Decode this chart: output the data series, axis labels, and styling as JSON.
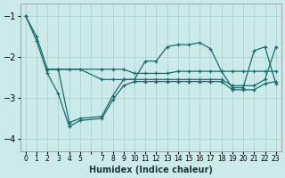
{
  "title": "",
  "xlabel": "Humidex (Indice chaleur)",
  "background_color": "#cceaea",
  "line_color": "#1a6b6b",
  "grid_color": "#aad4d4",
  "xlim": [
    -0.5,
    23.5
  ],
  "ylim": [
    -4.3,
    -0.7
  ],
  "yticks": [
    -4,
    -3,
    -2,
    -1
  ],
  "xtick_labels": [
    "0",
    "1",
    "2",
    "3",
    "4",
    "5",
    "",
    "7",
    "8",
    "9",
    "10",
    "11",
    "12",
    "13",
    "14",
    "15",
    "16",
    "17",
    "18",
    "19",
    "20",
    "21",
    "22",
    "23"
  ],
  "xtick_positions": [
    0,
    1,
    2,
    3,
    4,
    5,
    6,
    7,
    8,
    9,
    10,
    11,
    12,
    13,
    14,
    15,
    16,
    17,
    18,
    19,
    20,
    21,
    22,
    23
  ],
  "series": [
    {
      "x": [
        0,
        1,
        2,
        3,
        7,
        8,
        9,
        10,
        11,
        12,
        13,
        14,
        15,
        16,
        17,
        18,
        19,
        20,
        21,
        22,
        23
      ],
      "y": [
        -1.0,
        -1.5,
        -2.3,
        -2.3,
        -2.3,
        -2.3,
        -2.3,
        -2.4,
        -2.4,
        -2.4,
        -2.4,
        -2.35,
        -2.35,
        -2.35,
        -2.35,
        -2.35,
        -2.35,
        -2.35,
        -2.35,
        -2.35,
        -2.35
      ]
    },
    {
      "x": [
        0,
        1,
        2,
        3,
        4,
        5,
        7,
        8,
        9,
        10,
        11,
        12,
        13,
        14,
        15,
        16,
        17,
        18,
        19,
        20,
        21,
        22,
        23
      ],
      "y": [
        -1.0,
        -1.6,
        -2.4,
        -2.9,
        -3.7,
        -3.55,
        -3.5,
        -3.05,
        -2.7,
        -2.6,
        -2.6,
        -2.6,
        -2.6,
        -2.6,
        -2.6,
        -2.6,
        -2.6,
        -2.6,
        -2.8,
        -2.8,
        -2.8,
        -2.65,
        -2.6
      ]
    },
    {
      "x": [
        2,
        3,
        4,
        5,
        7,
        8,
        9,
        10,
        11,
        12,
        13,
        14,
        15,
        16,
        17,
        18,
        19,
        20,
        21,
        22,
        23
      ],
      "y": [
        -2.3,
        -2.3,
        -3.6,
        -3.5,
        -3.45,
        -2.95,
        -2.55,
        -2.55,
        -2.1,
        -2.1,
        -1.75,
        -1.7,
        -1.7,
        -1.65,
        -1.8,
        -2.35,
        -2.75,
        -2.75,
        -1.85,
        -1.75,
        -2.65
      ]
    },
    {
      "x": [
        2,
        3,
        4,
        5,
        7,
        8,
        9,
        10,
        11,
        12,
        13,
        14,
        15,
        16,
        17,
        18,
        19,
        20,
        21,
        22,
        23
      ],
      "y": [
        -2.3,
        -2.3,
        -2.3,
        -2.3,
        -2.55,
        -2.55,
        -2.55,
        -2.55,
        -2.55,
        -2.55,
        -2.55,
        -2.55,
        -2.55,
        -2.55,
        -2.55,
        -2.55,
        -2.7,
        -2.7,
        -2.7,
        -2.55,
        -1.75
      ]
    }
  ]
}
